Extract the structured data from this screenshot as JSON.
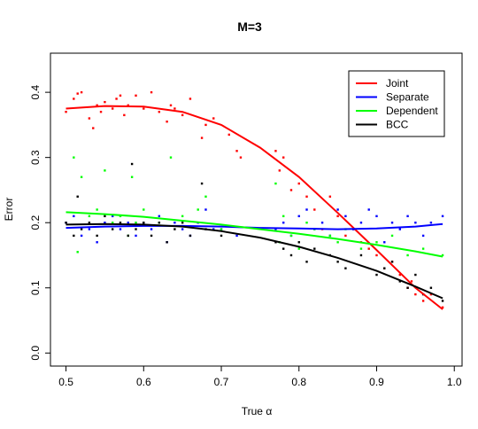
{
  "chart_data": {
    "type": "scatter",
    "title": "M=3",
    "xlabel": "True α",
    "ylabel": "Error",
    "xlim": [
      0.48,
      1.01
    ],
    "ylim": [
      -0.02,
      0.46
    ],
    "xticks": [
      0.5,
      0.6,
      0.7,
      0.8,
      0.9,
      1.0
    ],
    "xtick_labels": [
      "0.5",
      "0.6",
      "0.7",
      "0.8",
      "0.9",
      "1.0"
    ],
    "yticks": [
      0.0,
      0.1,
      0.2,
      0.3,
      0.4
    ],
    "ytick_labels": [
      "0.0",
      "0.1",
      "0.2",
      "0.3",
      "0.4"
    ],
    "legend_position": "top-right",
    "series": [
      {
        "name": "Joint",
        "color": "#ff0000",
        "curve": {
          "x": [
            0.5,
            0.55,
            0.6,
            0.65,
            0.7,
            0.75,
            0.8,
            0.85,
            0.9,
            0.95,
            0.985
          ],
          "y": [
            0.375,
            0.379,
            0.378,
            0.37,
            0.35,
            0.315,
            0.27,
            0.215,
            0.158,
            0.1,
            0.067
          ]
        },
        "points": {
          "x": [
            0.5,
            0.51,
            0.515,
            0.52,
            0.53,
            0.535,
            0.54,
            0.545,
            0.55,
            0.56,
            0.565,
            0.57,
            0.575,
            0.58,
            0.59,
            0.6,
            0.61,
            0.62,
            0.63,
            0.635,
            0.64,
            0.65,
            0.66,
            0.675,
            0.68,
            0.69,
            0.71,
            0.72,
            0.725,
            0.77,
            0.775,
            0.78,
            0.79,
            0.8,
            0.81,
            0.82,
            0.83,
            0.84,
            0.85,
            0.86,
            0.87,
            0.88,
            0.89,
            0.9,
            0.91,
            0.92,
            0.93,
            0.94,
            0.945,
            0.95,
            0.96,
            0.97,
            0.985
          ],
          "y": [
            0.37,
            0.39,
            0.398,
            0.4,
            0.36,
            0.345,
            0.38,
            0.37,
            0.385,
            0.375,
            0.39,
            0.395,
            0.365,
            0.38,
            0.395,
            0.375,
            0.4,
            0.37,
            0.355,
            0.38,
            0.375,
            0.365,
            0.39,
            0.33,
            0.35,
            0.36,
            0.335,
            0.31,
            0.3,
            0.31,
            0.28,
            0.3,
            0.25,
            0.26,
            0.24,
            0.22,
            0.19,
            0.24,
            0.21,
            0.18,
            0.19,
            0.17,
            0.16,
            0.15,
            0.13,
            0.14,
            0.12,
            0.1,
            0.11,
            0.09,
            0.08,
            0.09,
            0.07
          ]
        }
      },
      {
        "name": "Separate",
        "color": "#0000ff",
        "curve": {
          "x": [
            0.5,
            0.55,
            0.6,
            0.65,
            0.7,
            0.75,
            0.8,
            0.85,
            0.9,
            0.95,
            0.985
          ],
          "y": [
            0.192,
            0.194,
            0.195,
            0.195,
            0.194,
            0.192,
            0.191,
            0.19,
            0.191,
            0.194,
            0.198
          ]
        },
        "points": {
          "x": [
            0.5,
            0.51,
            0.52,
            0.53,
            0.54,
            0.55,
            0.56,
            0.57,
            0.58,
            0.59,
            0.6,
            0.61,
            0.62,
            0.63,
            0.64,
            0.65,
            0.66,
            0.67,
            0.68,
            0.69,
            0.7,
            0.72,
            0.77,
            0.78,
            0.79,
            0.8,
            0.81,
            0.82,
            0.83,
            0.84,
            0.85,
            0.86,
            0.87,
            0.88,
            0.89,
            0.9,
            0.91,
            0.92,
            0.93,
            0.94,
            0.95,
            0.96,
            0.97,
            0.985
          ],
          "y": [
            0.2,
            0.21,
            0.18,
            0.19,
            0.17,
            0.2,
            0.21,
            0.19,
            0.2,
            0.18,
            0.2,
            0.19,
            0.21,
            0.17,
            0.2,
            0.19,
            0.18,
            0.2,
            0.22,
            0.19,
            0.19,
            0.18,
            0.19,
            0.2,
            0.18,
            0.21,
            0.22,
            0.19,
            0.2,
            0.18,
            0.22,
            0.21,
            0.19,
            0.2,
            0.22,
            0.21,
            0.17,
            0.2,
            0.19,
            0.21,
            0.2,
            0.18,
            0.2,
            0.21
          ]
        }
      },
      {
        "name": "Dependent",
        "color": "#00ff00",
        "curve": {
          "x": [
            0.5,
            0.55,
            0.6,
            0.65,
            0.7,
            0.75,
            0.8,
            0.85,
            0.9,
            0.95,
            0.985
          ],
          "y": [
            0.216,
            0.213,
            0.209,
            0.203,
            0.197,
            0.19,
            0.183,
            0.175,
            0.166,
            0.156,
            0.148
          ]
        },
        "points": {
          "x": [
            0.51,
            0.515,
            0.52,
            0.53,
            0.54,
            0.55,
            0.56,
            0.57,
            0.58,
            0.585,
            0.59,
            0.6,
            0.62,
            0.635,
            0.65,
            0.67,
            0.68,
            0.7,
            0.77,
            0.775,
            0.78,
            0.79,
            0.8,
            0.81,
            0.82,
            0.84,
            0.85,
            0.86,
            0.88,
            0.9,
            0.92,
            0.94,
            0.96,
            0.985
          ],
          "y": [
            0.3,
            0.155,
            0.27,
            0.21,
            0.22,
            0.28,
            0.2,
            0.21,
            0.18,
            0.27,
            0.2,
            0.22,
            0.2,
            0.3,
            0.21,
            0.22,
            0.24,
            0.19,
            0.26,
            0.17,
            0.21,
            0.18,
            0.16,
            0.2,
            0.19,
            0.18,
            0.17,
            0.19,
            0.16,
            0.17,
            0.18,
            0.15,
            0.16,
            0.15
          ]
        }
      },
      {
        "name": "BCC",
        "color": "#000000",
        "curve": {
          "x": [
            0.5,
            0.55,
            0.6,
            0.65,
            0.7,
            0.75,
            0.8,
            0.85,
            0.9,
            0.95,
            0.985
          ],
          "y": [
            0.197,
            0.198,
            0.197,
            0.194,
            0.187,
            0.177,
            0.163,
            0.146,
            0.126,
            0.102,
            0.084
          ]
        },
        "points": {
          "x": [
            0.5,
            0.51,
            0.515,
            0.52,
            0.53,
            0.54,
            0.55,
            0.56,
            0.57,
            0.58,
            0.585,
            0.59,
            0.6,
            0.61,
            0.62,
            0.63,
            0.64,
            0.65,
            0.66,
            0.675,
            0.68,
            0.7,
            0.77,
            0.78,
            0.79,
            0.8,
            0.81,
            0.82,
            0.84,
            0.85,
            0.86,
            0.88,
            0.9,
            0.91,
            0.92,
            0.93,
            0.94,
            0.95,
            0.96,
            0.97,
            0.985
          ],
          "y": [
            0.2,
            0.18,
            0.24,
            0.19,
            0.2,
            0.18,
            0.21,
            0.19,
            0.2,
            0.18,
            0.29,
            0.19,
            0.2,
            0.18,
            0.2,
            0.17,
            0.19,
            0.2,
            0.18,
            0.26,
            0.19,
            0.18,
            0.17,
            0.16,
            0.15,
            0.17,
            0.14,
            0.16,
            0.15,
            0.14,
            0.13,
            0.15,
            0.12,
            0.13,
            0.14,
            0.11,
            0.1,
            0.12,
            0.09,
            0.1,
            0.08
          ]
        }
      }
    ]
  }
}
